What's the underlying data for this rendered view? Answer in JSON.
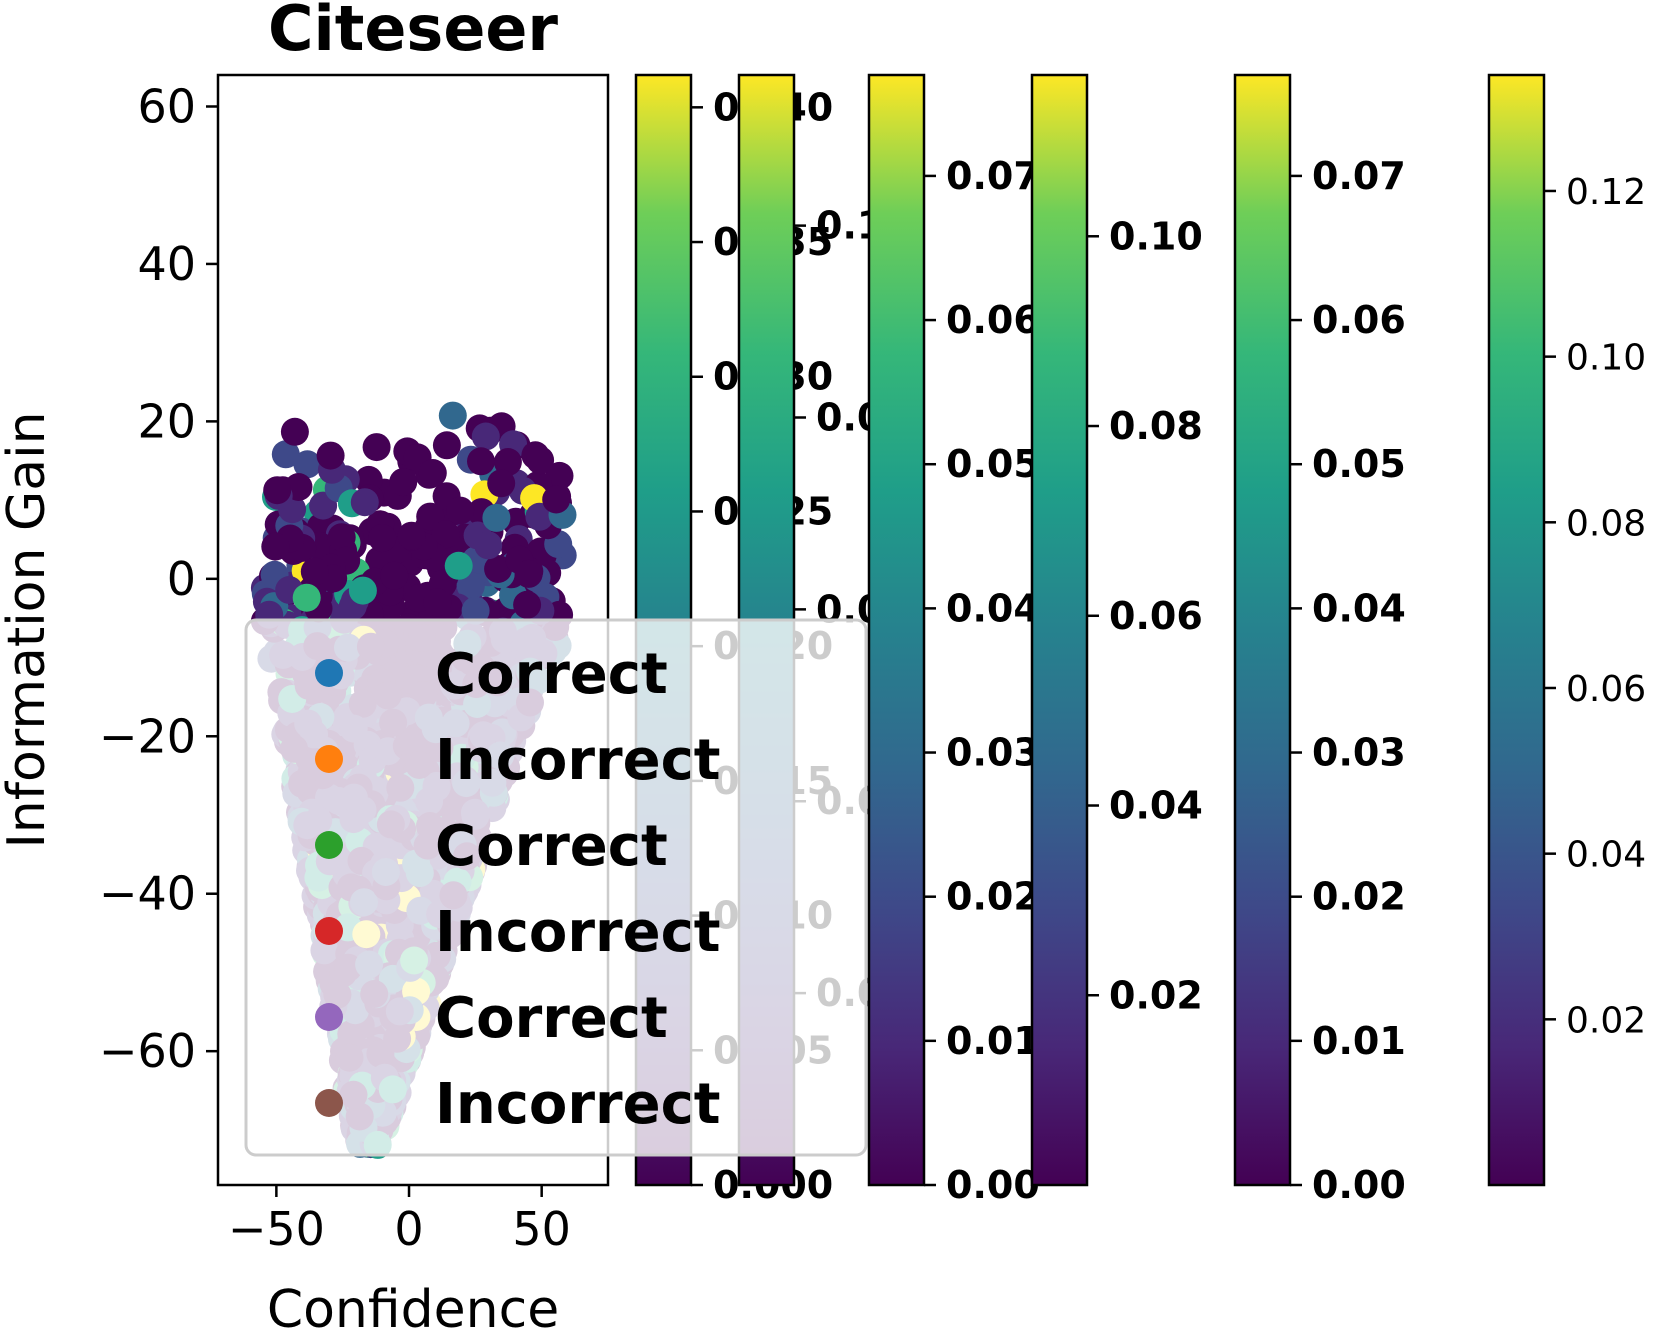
{
  "chart_data": {
    "type": "scatter",
    "title": "Citeseer",
    "xlabel": "Confidence",
    "ylabel": "Information Gain",
    "xlim": [
      -72,
      75
    ],
    "ylim": [
      -77,
      64
    ],
    "xticks": [
      -50,
      0,
      50
    ],
    "yticks": [
      -60,
      -40,
      -20,
      0,
      20,
      40,
      60
    ],
    "colormap": "viridis",
    "legend": {
      "placement": "lower-left",
      "entries": [
        {
          "label": "Correct",
          "color": "#1f77b4"
        },
        {
          "label": "Incorrect",
          "color": "#ff7f0e"
        },
        {
          "label": "Correct",
          "color": "#2ca02c"
        },
        {
          "label": "Incorrect",
          "color": "#d62728"
        },
        {
          "label": "Correct",
          "color": "#9467bd"
        },
        {
          "label": "Incorrect",
          "color": "#8c564b"
        }
      ]
    },
    "colorbars": [
      {
        "ticks": [
          "0.000",
          "0.005",
          "0.010",
          "0.015",
          "0.020",
          "0.025",
          "0.030",
          "0.035",
          "0.040"
        ],
        "min": 0.0,
        "max": 0.0412,
        "bold": true
      },
      {
        "ticks": [
          "0.02",
          "0.04",
          "0.06",
          "0.08",
          "0.10"
        ],
        "min": 0.0,
        "max": 0.1157,
        "bold": true
      },
      {
        "ticks": [
          "0.00",
          "0.01",
          "0.02",
          "0.03",
          "0.04",
          "0.05",
          "0.06",
          "0.07"
        ],
        "min": 0.0,
        "max": 0.077,
        "bold": true
      },
      {
        "ticks": [
          "0.02",
          "0.04",
          "0.06",
          "0.08",
          "0.10"
        ],
        "min": 0.0,
        "max": 0.117,
        "bold": true
      },
      {
        "ticks": [
          "0.00",
          "0.01",
          "0.02",
          "0.03",
          "0.04",
          "0.05",
          "0.06",
          "0.07"
        ],
        "min": 0.0,
        "max": 0.077,
        "bold": true
      },
      {
        "ticks": [
          "0.02",
          "0.04",
          "0.06",
          "0.08",
          "0.10",
          "0.12"
        ],
        "min": 0.0,
        "max": 0.134,
        "bold": false
      }
    ]
  }
}
